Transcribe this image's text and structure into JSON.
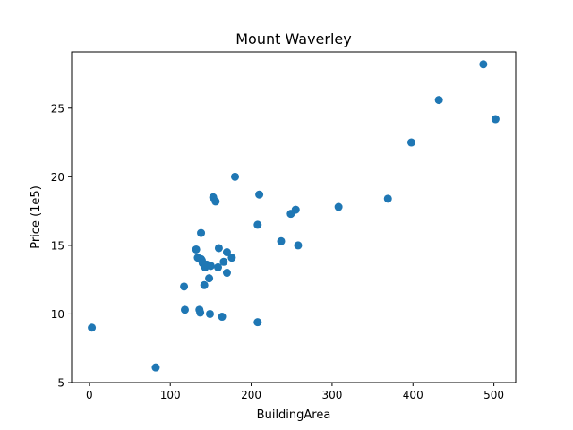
{
  "chart_data": {
    "type": "scatter",
    "title": "Mount Waverley",
    "xlabel": "BuildingArea",
    "ylabel": "Price (1e5)",
    "xlim": [
      -22,
      527
    ],
    "ylim": [
      5,
      29.1
    ],
    "xticks": [
      0,
      100,
      200,
      300,
      400,
      500
    ],
    "yticks": [
      5,
      10,
      15,
      20,
      25
    ],
    "grid": false,
    "marker_color": "#1f77b4",
    "series": [
      {
        "x": [
          3,
          82,
          117,
          118,
          132,
          134,
          137,
          136,
          138,
          138,
          139,
          140,
          142,
          143,
          145,
          148,
          149,
          150,
          153,
          156,
          159,
          160,
          164,
          166,
          170,
          170,
          176,
          180,
          208,
          208,
          210,
          237,
          249,
          255,
          258,
          308,
          369,
          398,
          432,
          487,
          502
        ],
        "y": [
          9.0,
          6.1,
          12.0,
          10.3,
          14.7,
          14.1,
          10.1,
          10.3,
          15.9,
          14.0,
          13.9,
          13.7,
          12.1,
          13.4,
          13.6,
          12.6,
          10.0,
          13.5,
          18.5,
          18.2,
          13.4,
          14.8,
          9.8,
          13.8,
          14.5,
          13.0,
          14.1,
          20.0,
          16.5,
          9.4,
          18.7,
          15.3,
          17.3,
          17.6,
          15.0,
          17.8,
          18.4,
          22.5,
          25.6,
          28.2,
          24.2
        ]
      }
    ]
  }
}
